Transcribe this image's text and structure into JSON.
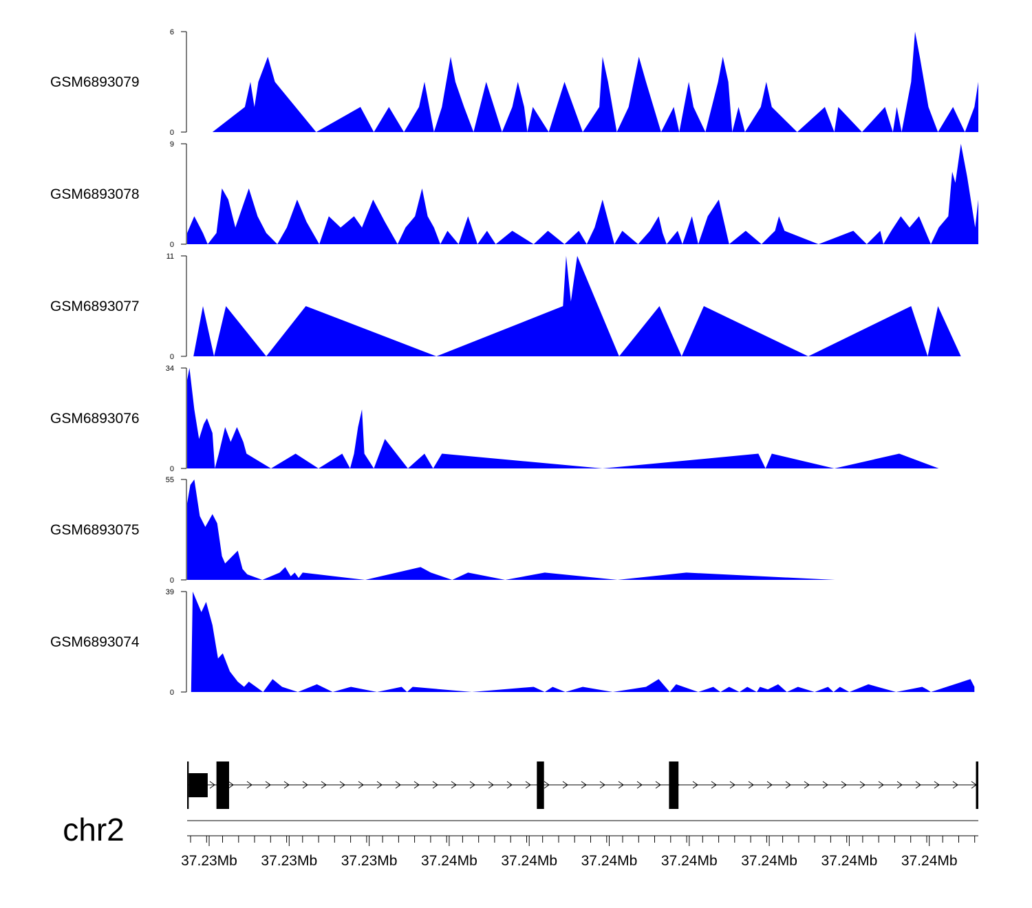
{
  "chart_data": {
    "type": "area",
    "chromosome": "chr2",
    "fill_color": "#0000ff",
    "gene_color": "#000000",
    "x_axis": {
      "tick_labels": [
        "37.23Mb",
        "37.23Mb",
        "37.23Mb",
        "37.24Mb",
        "37.24Mb",
        "37.24Mb",
        "37.24Mb",
        "37.24Mb",
        "37.24Mb",
        "37.24Mb"
      ]
    },
    "tracks": [
      {
        "name": "GSM6893079",
        "ymin_label": "0",
        "ymax_label": "6",
        "ylim": [
          0,
          6
        ],
        "points": [
          [
            0.032,
            0
          ],
          [
            0.073,
            1.5
          ],
          [
            0.08,
            3
          ],
          [
            0.085,
            1.5
          ],
          [
            0.09,
            3
          ],
          [
            0.102,
            4.5
          ],
          [
            0.111,
            3
          ],
          [
            0.163,
            0
          ],
          [
            0.219,
            1.5
          ],
          [
            0.236,
            0
          ],
          [
            0.255,
            1.5
          ],
          [
            0.274,
            0
          ],
          [
            0.293,
            1.5
          ],
          [
            0.3,
            3
          ],
          [
            0.312,
            0
          ],
          [
            0.322,
            1.5
          ],
          [
            0.333,
            4.5
          ],
          [
            0.339,
            3
          ],
          [
            0.35,
            1.5
          ],
          [
            0.362,
            0
          ],
          [
            0.378,
            3
          ],
          [
            0.398,
            0
          ],
          [
            0.411,
            1.5
          ],
          [
            0.418,
            3
          ],
          [
            0.426,
            1.5
          ],
          [
            0.43,
            0
          ],
          [
            0.437,
            1.5
          ],
          [
            0.457,
            0
          ],
          [
            0.477,
            3
          ],
          [
            0.5,
            0
          ],
          [
            0.521,
            1.5
          ],
          [
            0.525,
            4.5
          ],
          [
            0.532,
            3
          ],
          [
            0.543,
            0
          ],
          [
            0.558,
            1.5
          ],
          [
            0.571,
            4.5
          ],
          [
            0.58,
            3
          ],
          [
            0.599,
            0
          ],
          [
            0.615,
            1.5
          ],
          [
            0.622,
            0
          ],
          [
            0.634,
            3
          ],
          [
            0.64,
            1.5
          ],
          [
            0.655,
            0
          ],
          [
            0.671,
            3
          ],
          [
            0.677,
            4.5
          ],
          [
            0.684,
            3
          ],
          [
            0.689,
            0
          ],
          [
            0.697,
            1.5
          ],
          [
            0.705,
            0
          ],
          [
            0.725,
            1.5
          ],
          [
            0.732,
            3
          ],
          [
            0.739,
            1.5
          ],
          [
            0.771,
            0
          ],
          [
            0.806,
            1.5
          ],
          [
            0.818,
            0
          ],
          [
            0.823,
            1.5
          ],
          [
            0.853,
            0
          ],
          [
            0.882,
            1.5
          ],
          [
            0.892,
            0
          ],
          [
            0.897,
            1.5
          ],
          [
            0.903,
            0
          ],
          [
            0.915,
            3
          ],
          [
            0.92,
            6
          ],
          [
            0.926,
            4.5
          ],
          [
            0.937,
            1.5
          ],
          [
            0.949,
            0
          ],
          [
            0.968,
            1.5
          ],
          [
            0.983,
            0
          ],
          [
            0.995,
            1.5
          ],
          [
            1.0,
            3
          ],
          [
            1.0,
            0
          ]
        ]
      },
      {
        "name": "GSM6893078",
        "ymin_label": "0",
        "ymax_label": "9",
        "ylim": [
          0,
          9
        ],
        "points": [
          [
            0.0,
            1
          ],
          [
            0.009,
            2.5
          ],
          [
            0.02,
            1
          ],
          [
            0.026,
            0
          ],
          [
            0.037,
            1
          ],
          [
            0.044,
            5
          ],
          [
            0.052,
            4
          ],
          [
            0.061,
            1.5
          ],
          [
            0.078,
            5
          ],
          [
            0.089,
            2.5
          ],
          [
            0.1,
            1
          ],
          [
            0.114,
            0
          ],
          [
            0.126,
            1.5
          ],
          [
            0.139,
            4
          ],
          [
            0.151,
            2
          ],
          [
            0.167,
            0
          ],
          [
            0.179,
            2.5
          ],
          [
            0.194,
            1.5
          ],
          [
            0.211,
            2.5
          ],
          [
            0.221,
            1.5
          ],
          [
            0.235,
            4
          ],
          [
            0.25,
            2
          ],
          [
            0.266,
            0
          ],
          [
            0.276,
            1.5
          ],
          [
            0.288,
            2.5
          ],
          [
            0.297,
            5
          ],
          [
            0.304,
            2.5
          ],
          [
            0.312,
            1.5
          ],
          [
            0.32,
            0
          ],
          [
            0.329,
            1.2
          ],
          [
            0.343,
            0
          ],
          [
            0.355,
            2.5
          ],
          [
            0.367,
            0
          ],
          [
            0.379,
            1.2
          ],
          [
            0.39,
            0
          ],
          [
            0.411,
            1.2
          ],
          [
            0.438,
            0
          ],
          [
            0.456,
            1.2
          ],
          [
            0.477,
            0
          ],
          [
            0.495,
            1.2
          ],
          [
            0.505,
            0
          ],
          [
            0.515,
            1.5
          ],
          [
            0.525,
            4
          ],
          [
            0.54,
            0
          ],
          [
            0.55,
            1.2
          ],
          [
            0.57,
            0
          ],
          [
            0.585,
            1.2
          ],
          [
            0.596,
            2.5
          ],
          [
            0.601,
            1
          ],
          [
            0.606,
            0
          ],
          [
            0.62,
            1.2
          ],
          [
            0.626,
            0
          ],
          [
            0.638,
            2.5
          ],
          [
            0.646,
            0
          ],
          [
            0.658,
            2.5
          ],
          [
            0.672,
            4
          ],
          [
            0.685,
            0
          ],
          [
            0.706,
            1.2
          ],
          [
            0.726,
            0
          ],
          [
            0.743,
            1.2
          ],
          [
            0.748,
            2.5
          ],
          [
            0.755,
            1.2
          ],
          [
            0.798,
            0
          ],
          [
            0.842,
            1.2
          ],
          [
            0.859,
            0
          ],
          [
            0.876,
            1.2
          ],
          [
            0.88,
            0
          ],
          [
            0.89,
            1.2
          ],
          [
            0.902,
            2.5
          ],
          [
            0.913,
            1.5
          ],
          [
            0.925,
            2.5
          ],
          [
            0.94,
            0
          ],
          [
            0.95,
            1.5
          ],
          [
            0.962,
            2.5
          ],
          [
            0.967,
            6.5
          ],
          [
            0.971,
            5.5
          ],
          [
            0.978,
            9
          ],
          [
            0.986,
            6
          ],
          [
            0.996,
            1.5
          ],
          [
            1.0,
            4
          ],
          [
            1.0,
            0
          ]
        ]
      },
      {
        "name": "GSM6893077",
        "ymin_label": "0",
        "ymax_label": "11",
        "ylim": [
          0,
          11
        ],
        "points": [
          [
            0.008,
            0
          ],
          [
            0.02,
            5.5
          ],
          [
            0.034,
            0
          ],
          [
            0.049,
            5.5
          ],
          [
            0.1,
            0
          ],
          [
            0.15,
            5.5
          ],
          [
            0.315,
            0
          ],
          [
            0.475,
            5.5
          ],
          [
            0.479,
            11
          ],
          [
            0.485,
            6
          ],
          [
            0.493,
            11
          ],
          [
            0.546,
            0
          ],
          [
            0.597,
            5.5
          ],
          [
            0.625,
            0
          ],
          [
            0.653,
            5.5
          ],
          [
            0.785,
            0
          ],
          [
            0.915,
            5.5
          ],
          [
            0.936,
            0
          ],
          [
            0.949,
            5.5
          ],
          [
            0.978,
            0
          ]
        ]
      },
      {
        "name": "GSM6893076",
        "ymin_label": "0",
        "ymax_label": "34",
        "ylim": [
          0,
          34
        ],
        "points": [
          [
            0.0,
            30
          ],
          [
            0.003,
            34
          ],
          [
            0.009,
            20
          ],
          [
            0.015,
            10
          ],
          [
            0.021,
            15
          ],
          [
            0.025,
            17
          ],
          [
            0.032,
            12
          ],
          [
            0.035,
            0
          ],
          [
            0.04,
            5
          ],
          [
            0.048,
            14
          ],
          [
            0.055,
            9
          ],
          [
            0.063,
            14
          ],
          [
            0.071,
            9
          ],
          [
            0.075,
            5
          ],
          [
            0.106,
            0
          ],
          [
            0.137,
            5
          ],
          [
            0.166,
            0
          ],
          [
            0.196,
            5
          ],
          [
            0.206,
            0
          ],
          [
            0.211,
            5
          ],
          [
            0.216,
            14
          ],
          [
            0.221,
            20
          ],
          [
            0.224,
            5
          ],
          [
            0.236,
            0
          ],
          [
            0.25,
            10
          ],
          [
            0.279,
            0
          ],
          [
            0.3,
            5
          ],
          [
            0.311,
            0
          ],
          [
            0.322,
            5
          ],
          [
            0.525,
            0
          ],
          [
            0.722,
            5
          ],
          [
            0.731,
            0
          ],
          [
            0.739,
            5
          ],
          [
            0.818,
            0
          ],
          [
            0.9,
            5
          ],
          [
            0.95,
            0
          ]
        ]
      },
      {
        "name": "GSM6893075",
        "ymin_label": "0",
        "ymax_label": "55",
        "ylim": [
          0,
          55
        ],
        "points": [
          [
            0.0,
            42
          ],
          [
            0.004,
            52
          ],
          [
            0.009,
            55
          ],
          [
            0.016,
            35
          ],
          [
            0.023,
            29
          ],
          [
            0.032,
            36
          ],
          [
            0.038,
            31
          ],
          [
            0.044,
            13
          ],
          [
            0.048,
            9
          ],
          [
            0.064,
            16
          ],
          [
            0.07,
            6
          ],
          [
            0.076,
            3
          ],
          [
            0.095,
            0
          ],
          [
            0.117,
            4
          ],
          [
            0.124,
            7
          ],
          [
            0.131,
            2
          ],
          [
            0.136,
            4
          ],
          [
            0.141,
            1
          ],
          [
            0.146,
            4
          ],
          [
            0.225,
            0
          ],
          [
            0.295,
            7
          ],
          [
            0.308,
            4
          ],
          [
            0.335,
            0
          ],
          [
            0.355,
            4
          ],
          [
            0.402,
            0
          ],
          [
            0.452,
            4
          ],
          [
            0.544,
            0
          ],
          [
            0.631,
            4
          ],
          [
            0.819,
            0
          ]
        ]
      },
      {
        "name": "GSM6893074",
        "ymin_label": "0",
        "ymax_label": "39",
        "ylim": [
          0,
          39
        ],
        "points": [
          [
            0.005,
            0
          ],
          [
            0.007,
            39
          ],
          [
            0.018,
            31
          ],
          [
            0.024,
            35
          ],
          [
            0.032,
            26
          ],
          [
            0.039,
            13
          ],
          [
            0.045,
            15
          ],
          [
            0.054,
            8
          ],
          [
            0.064,
            4
          ],
          [
            0.072,
            2
          ],
          [
            0.078,
            4
          ],
          [
            0.087,
            2
          ],
          [
            0.096,
            0
          ],
          [
            0.108,
            5
          ],
          [
            0.12,
            2
          ],
          [
            0.14,
            0
          ],
          [
            0.164,
            3
          ],
          [
            0.184,
            0
          ],
          [
            0.207,
            2
          ],
          [
            0.24,
            0
          ],
          [
            0.271,
            2
          ],
          [
            0.278,
            0
          ],
          [
            0.285,
            2
          ],
          [
            0.36,
            0
          ],
          [
            0.438,
            2
          ],
          [
            0.452,
            0
          ],
          [
            0.462,
            2
          ],
          [
            0.478,
            0
          ],
          [
            0.5,
            2
          ],
          [
            0.538,
            0
          ],
          [
            0.58,
            2
          ],
          [
            0.596,
            5
          ],
          [
            0.61,
            0
          ],
          [
            0.618,
            3
          ],
          [
            0.646,
            0
          ],
          [
            0.665,
            2
          ],
          [
            0.674,
            0
          ],
          [
            0.685,
            2
          ],
          [
            0.698,
            0
          ],
          [
            0.708,
            2
          ],
          [
            0.72,
            0
          ],
          [
            0.724,
            2
          ],
          [
            0.734,
            1
          ],
          [
            0.747,
            3
          ],
          [
            0.758,
            0
          ],
          [
            0.772,
            2
          ],
          [
            0.793,
            0
          ],
          [
            0.81,
            2
          ],
          [
            0.817,
            0
          ],
          [
            0.825,
            2
          ],
          [
            0.837,
            0
          ],
          [
            0.861,
            3
          ],
          [
            0.896,
            0
          ],
          [
            0.929,
            2
          ],
          [
            0.935,
            1
          ],
          [
            0.94,
            0
          ],
          [
            0.96,
            2
          ],
          [
            0.99,
            5
          ],
          [
            0.995,
            2
          ],
          [
            0.995,
            0
          ]
        ]
      }
    ],
    "gene_model": {
      "strand": "+",
      "exons": [
        [
          0.0,
          0.002,
          "full"
        ],
        [
          0.002,
          0.026,
          "half"
        ],
        [
          0.037,
          0.053,
          "full"
        ],
        [
          0.442,
          0.451,
          "full"
        ],
        [
          0.609,
          0.621,
          "full"
        ],
        [
          0.997,
          1.0,
          "full"
        ]
      ]
    }
  }
}
